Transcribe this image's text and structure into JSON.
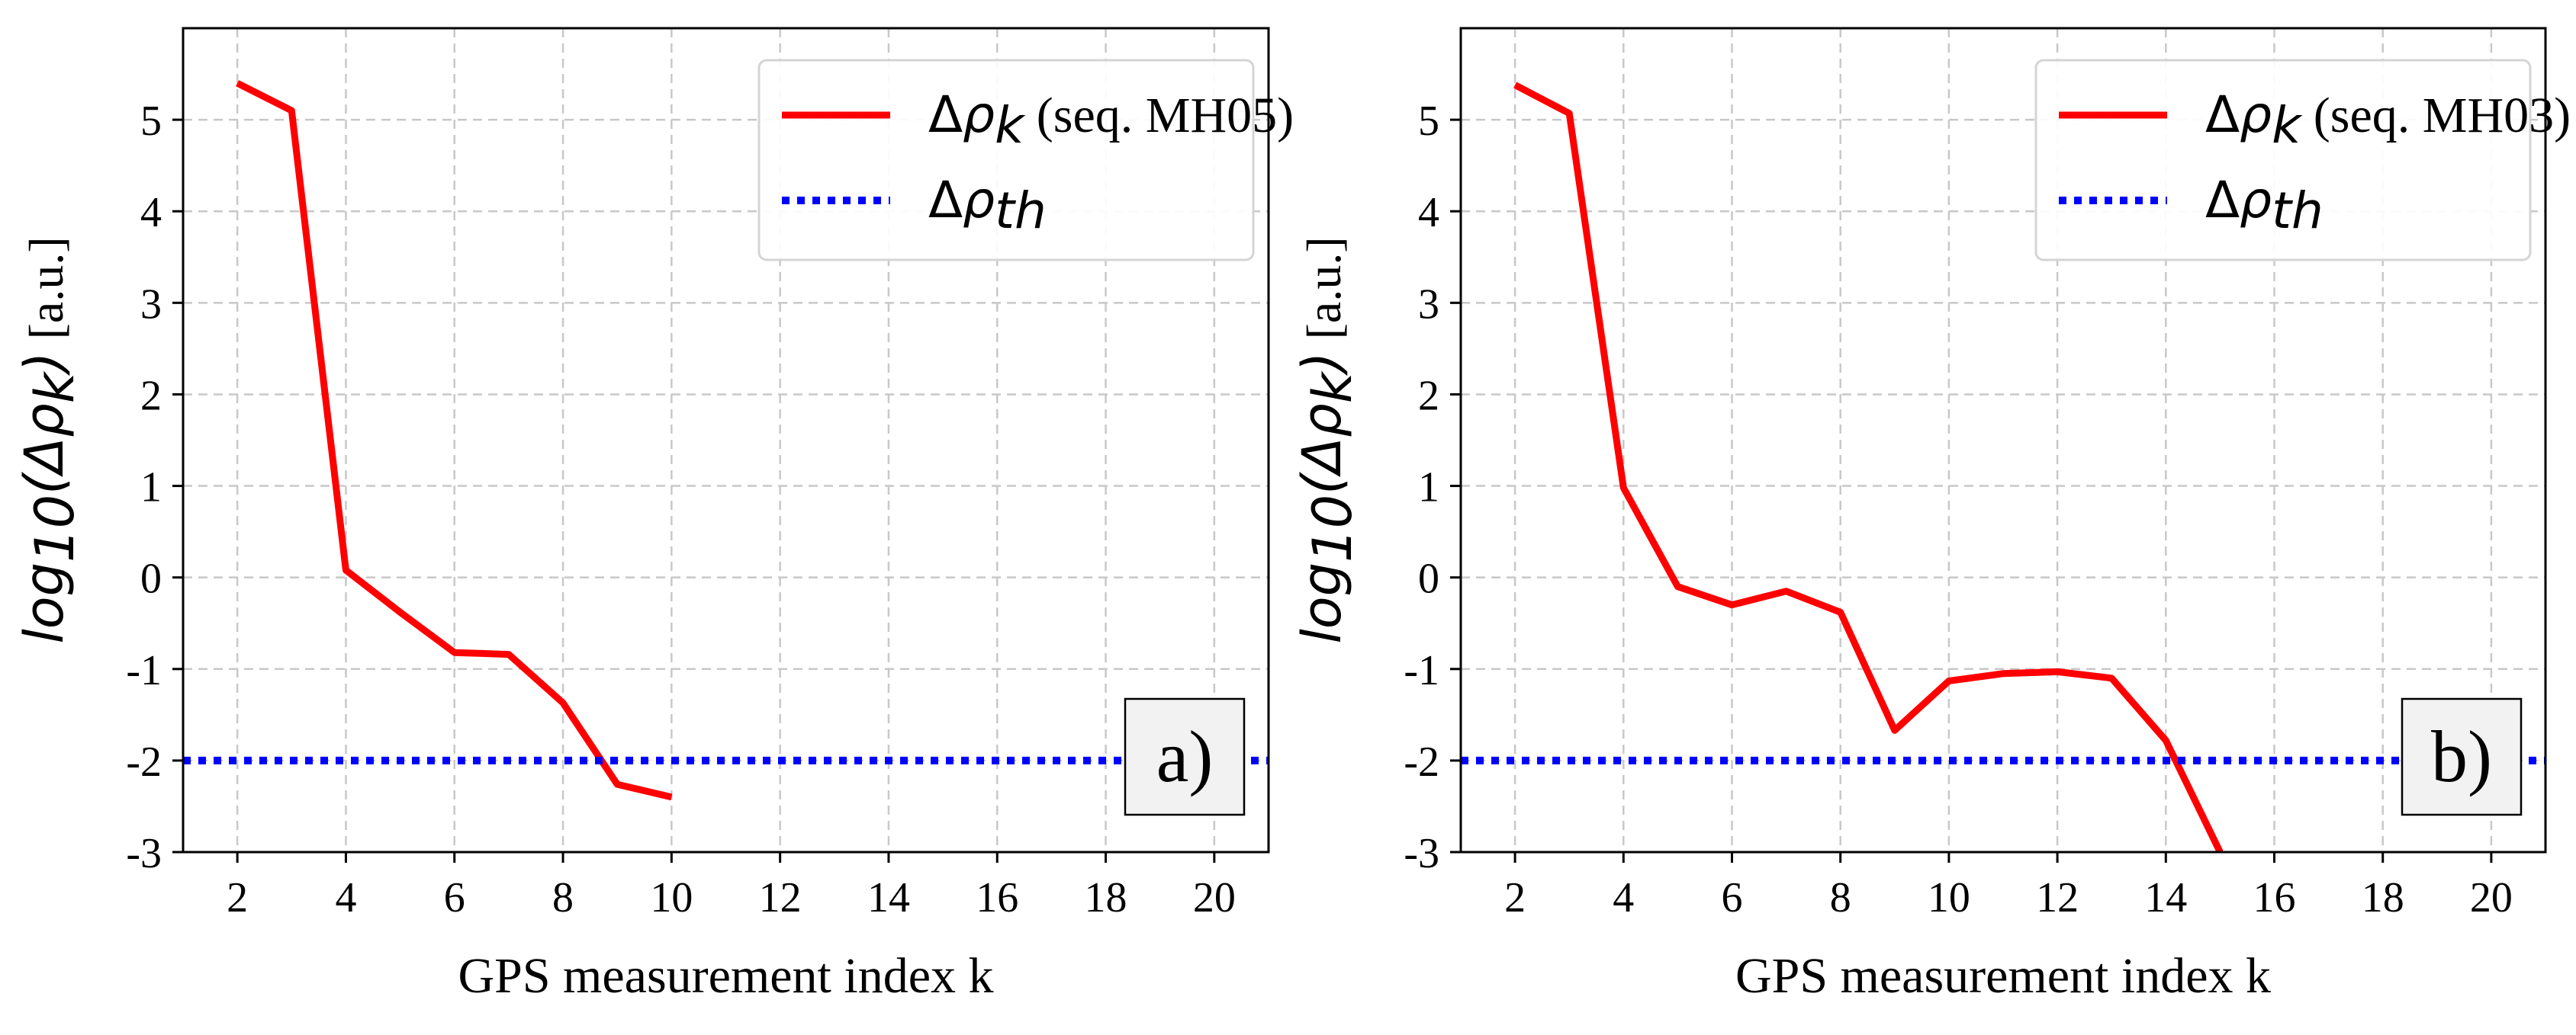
{
  "chart_data": [
    {
      "type": "line",
      "panel_label": "a)",
      "xlabel": "GPS measurement index k",
      "ylabel": "log10(Δρk) [a.u.]",
      "ylabel_parts": {
        "log": "log",
        "sub": "10",
        "open": "(Δρ",
        "k": "k",
        "close": ")",
        "unit": " [a.u.]"
      },
      "xlim": [
        1,
        21
      ],
      "ylim": [
        -3,
        6
      ],
      "xticks": [
        2,
        4,
        6,
        8,
        10,
        12,
        14,
        16,
        18,
        20
      ],
      "yticks": [
        -3,
        -2,
        -1,
        0,
        1,
        2,
        3,
        4,
        5
      ],
      "grid": true,
      "legend_position": "top-right",
      "series": [
        {
          "name": "Δρk (seq. MH05)",
          "legend_parts": {
            "delta": "Δ",
            "rho": "ρ",
            "sub": "k",
            "rest": " (seq. MH05)"
          },
          "color": "#ff0000",
          "style": "solid",
          "x": [
            2,
            3,
            4,
            5,
            6,
            7,
            8,
            9,
            10
          ],
          "y": [
            5.4,
            5.1,
            0.08,
            -0.38,
            -0.82,
            -0.84,
            -1.37,
            -2.26,
            -2.4
          ]
        },
        {
          "name": "Δρth",
          "legend_parts": {
            "delta": "Δ",
            "rho": "ρ",
            "sub": "th",
            "rest": ""
          },
          "color": "#0000ff",
          "style": "dotted",
          "x": [
            1,
            21
          ],
          "y": [
            -2,
            -2
          ]
        }
      ]
    },
    {
      "type": "line",
      "panel_label": "b)",
      "xlabel": "GPS measurement index k",
      "ylabel": "log10(Δρk) [a.u.]",
      "ylabel_parts": {
        "log": "log",
        "sub": "10",
        "open": "(Δρ",
        "k": "k",
        "close": ")",
        "unit": " [a.u.]"
      },
      "xlim": [
        1,
        21
      ],
      "ylim": [
        -3,
        6
      ],
      "xticks": [
        2,
        4,
        6,
        8,
        10,
        12,
        14,
        16,
        18,
        20
      ],
      "yticks": [
        -3,
        -2,
        -1,
        0,
        1,
        2,
        3,
        4,
        5
      ],
      "grid": true,
      "legend_position": "top-right",
      "series": [
        {
          "name": "Δρk (seq. MH03)",
          "legend_parts": {
            "delta": "Δ",
            "rho": "ρ",
            "sub": "k",
            "rest": " (seq. MH03)"
          },
          "color": "#ff0000",
          "style": "solid",
          "x": [
            2,
            3,
            4,
            5,
            6,
            7,
            8,
            9,
            10,
            11,
            12,
            13,
            14,
            15
          ],
          "y": [
            5.38,
            5.07,
            0.98,
            -0.1,
            -0.3,
            -0.15,
            -0.38,
            -1.67,
            -1.13,
            -1.05,
            -1.03,
            -1.1,
            -1.78,
            -3.0
          ]
        },
        {
          "name": "Δρth",
          "legend_parts": {
            "delta": "Δ",
            "rho": "ρ",
            "sub": "th",
            "rest": ""
          },
          "color": "#0000ff",
          "style": "dotted",
          "x": [
            1,
            21
          ],
          "y": [
            -2,
            -2
          ]
        }
      ]
    }
  ]
}
